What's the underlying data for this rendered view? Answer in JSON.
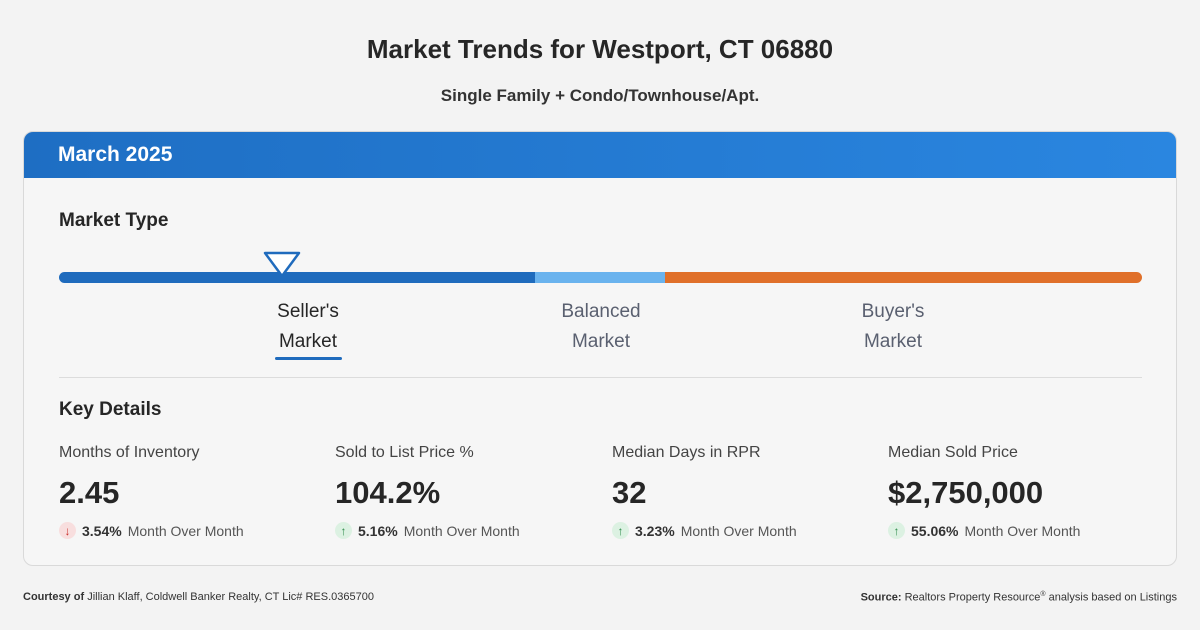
{
  "title": "Market Trends for Westport, CT 06880",
  "subtitle": "Single Family + Condo/Townhouse/Apt.",
  "card": {
    "header": "March 2025",
    "colors": {
      "header_start": "#1e6ec3",
      "header_end": "#2a86e0"
    }
  },
  "market_type": {
    "title": "Market Type",
    "selected": "Seller's Market",
    "segments": [
      {
        "line1": "Seller's",
        "line2": "Market",
        "color": "#1f6bbd"
      },
      {
        "line1": "Balanced",
        "line2": "Market",
        "color": "#6ab3ee"
      },
      {
        "line1": "Buyer's",
        "line2": "Market",
        "color": "#e0702a"
      }
    ]
  },
  "key_details": {
    "title": "Key Details",
    "stats": [
      {
        "label": "Months of Inventory",
        "value": "2.45",
        "direction": "down",
        "icon": "arrow-down-icon",
        "change": "3.54%",
        "period": "Month Over Month"
      },
      {
        "label": "Sold to List Price %",
        "value": "104.2%",
        "direction": "up",
        "icon": "arrow-up-icon",
        "change": "5.16%",
        "period": "Month Over Month"
      },
      {
        "label": "Median Days in RPR",
        "value": "32",
        "direction": "up",
        "icon": "arrow-up-icon",
        "change": "3.23%",
        "period": "Month Over Month"
      },
      {
        "label": "Median Sold Price",
        "value": "$2,750,000",
        "direction": "up",
        "icon": "arrow-up-icon",
        "change": "55.06%",
        "period": "Month Over Month"
      }
    ]
  },
  "footer": {
    "left_bold": "Courtesy of",
    "left_text": "Jillian Klaff, Coldwell Banker Realty, CT Lic# RES.0365700",
    "right_bold": "Source:",
    "right_text": "Realtors Property Resource",
    "right_sup": "®",
    "right_tail": "analysis based on Listings"
  }
}
